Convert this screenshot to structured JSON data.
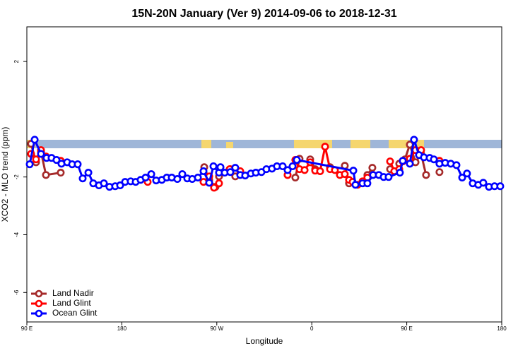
{
  "chart_data": {
    "type": "line",
    "title": "15N-20N January (Ver 9)   2014-09-06 to 2018-12-31",
    "x_label": "Longitude",
    "y_label": "XCO2 - MLO trend (ppm)",
    "xlim": [
      90,
      540
    ],
    "ylim": [
      -7.02,
      3.2
    ],
    "xticks": [
      {
        "value": 90,
        "label": "90 E"
      },
      180,
      {
        "value": 270,
        "label": "90 W"
      },
      {
        "value": 360,
        "label": "0"
      },
      {
        "value": 450,
        "label": "90 E"
      },
      {
        "value": 540,
        "label": "180"
      }
    ],
    "yticks": [
      2,
      -2,
      -4,
      -6
    ],
    "grid": false,
    "legend": "bottom-left",
    "series": [
      {
        "name": "Land Nadir",
        "color": "#a52a2a",
        "x": [
          94.0,
          98.7,
          103.4,
          108.1,
          122.1,
          null,
          258.1,
          262.8,
          268.8,
          272.1,
          null,
          282.8,
          287.5,
          null,
          337.1,
          null,
          344.4,
          348.4,
          null,
          358.5,
          363.2,
          null,
          377.3,
          null,
          391.3,
          395.3,
          null,
          412.7,
          417.4,
          null,
          434.2,
          null,
          442.9,
          448.2,
          452.9,
          458.3,
          463.6,
          468.3,
          null,
          481.0
        ],
        "values": [
          -0.85,
          -1.49,
          -1.12,
          -1.93,
          -1.85,
          null,
          -1.66,
          -2.1,
          -2.34,
          -1.98,
          null,
          -1.73,
          -1.98,
          null,
          -1.93,
          null,
          -2.02,
          -1.37,
          null,
          -1.39,
          -1.73,
          null,
          -1.66,
          null,
          -1.61,
          -2.22,
          null,
          -1.93,
          -1.68,
          null,
          -1.73,
          null,
          -1.54,
          -1.39,
          -0.88,
          -1.49,
          -1.2,
          -1.93,
          null,
          -1.83
        ]
      },
      {
        "name": "Land Glint",
        "color": "#ff0000",
        "x": [
          94.0,
          98.7,
          103.4,
          108.1,
          null,
          122.1,
          null,
          204.5,
          null,
          257.4,
          262.8,
          267.4,
          272.1,
          null,
          282.2,
          null,
          292.2,
          null,
          337.1,
          null,
          344.4,
          348.4,
          353.2,
          358.5,
          363.2,
          367.9,
          372.6,
          377.3,
          381.9,
          386.6,
          391.3,
          395.3,
          398.7,
          403.4,
          408.1,
          412.7,
          null,
          434.2,
          438.2,
          442.9,
          446.2,
          null,
          452.9,
          458.3,
          463.6,
          null,
          481.0
        ],
        "values": [
          -1.2,
          -1.39,
          -1.07,
          -1.29,
          null,
          -1.44,
          null,
          -2.17,
          null,
          -2.17,
          -1.98,
          -2.37,
          -2.22,
          null,
          -1.73,
          null,
          -1.8,
          null,
          -1.93,
          null,
          -1.41,
          -1.73,
          -1.76,
          -1.49,
          -1.78,
          -1.8,
          -0.95,
          -1.73,
          -1.76,
          -1.93,
          -1.9,
          -2.1,
          -2.17,
          -2.27,
          -2.15,
          -2.02,
          null,
          -1.46,
          -1.8,
          -1.73,
          -1.46,
          null,
          -1.37,
          -1.07,
          -1.07,
          null,
          -1.44
        ]
      },
      {
        "name": "Ocean Glint",
        "color": "#0000ff",
        "x": [
          92.7,
          97.4,
          103.4,
          108.7,
          113.4,
          118.1,
          122.8,
          128.2,
          132.9,
          138.2,
          142.9,
          148.3,
          152.9,
          158.3,
          163.0,
          168.3,
          173.7,
          178.4,
          183.1,
          188.4,
          193.1,
          197.8,
          202.5,
          207.9,
          212.5,
          217.9,
          222.6,
          227.3,
          232.6,
          237.3,
          242.0,
          246.7,
          252.1,
          257.4,
          262.8,
          266.8,
          272.1,
          273.5,
          277.5,
          282.8,
          287.5,
          292.2,
          296.9,
          302.3,
          307.0,
          312.3,
          317.0,
          322.3,
          327.0,
          332.4,
          337.1,
          341.8,
          345.8,
          399.4,
          401.4,
          408.1,
          412.7,
          418.1,
          423.5,
          428.1,
          432.8,
          443.5,
          446.2,
          452.9,
          456.9,
          461.6,
          466.3,
          471.7,
          475.7,
          481.0,
          486.4,
          491.7,
          497.1,
          502.5,
          507.1,
          512.5,
          517.8,
          522.5,
          527.9,
          533.2,
          538.6
        ],
        "values": [
          -1.56,
          -0.71,
          -1.2,
          -1.34,
          -1.34,
          -1.41,
          -1.54,
          -1.49,
          -1.56,
          -1.56,
          -2.05,
          -1.85,
          -2.22,
          -2.29,
          -2.22,
          -2.34,
          -2.32,
          -2.29,
          -2.17,
          -2.15,
          -2.17,
          -2.1,
          -2.02,
          -1.9,
          -2.12,
          -2.1,
          -2.02,
          -2.02,
          -2.07,
          -1.9,
          -2.05,
          -2.07,
          -2.02,
          -1.8,
          -2.2,
          -1.63,
          -1.85,
          -1.66,
          -1.85,
          -1.83,
          -1.68,
          -1.93,
          -1.95,
          -1.88,
          -1.85,
          -1.83,
          -1.73,
          -1.71,
          -1.63,
          -1.63,
          -1.76,
          -1.63,
          -1.41,
          -1.78,
          -2.27,
          -2.22,
          -2.22,
          -1.93,
          -1.93,
          -2.0,
          -2.0,
          -1.85,
          -1.44,
          -1.54,
          -0.71,
          -1.24,
          -1.32,
          -1.34,
          -1.39,
          -1.54,
          -1.51,
          -1.54,
          -1.59,
          -2.02,
          -1.88,
          -2.22,
          -2.27,
          -2.2,
          -2.34,
          -2.32,
          -2.32
        ]
      }
    ]
  }
}
